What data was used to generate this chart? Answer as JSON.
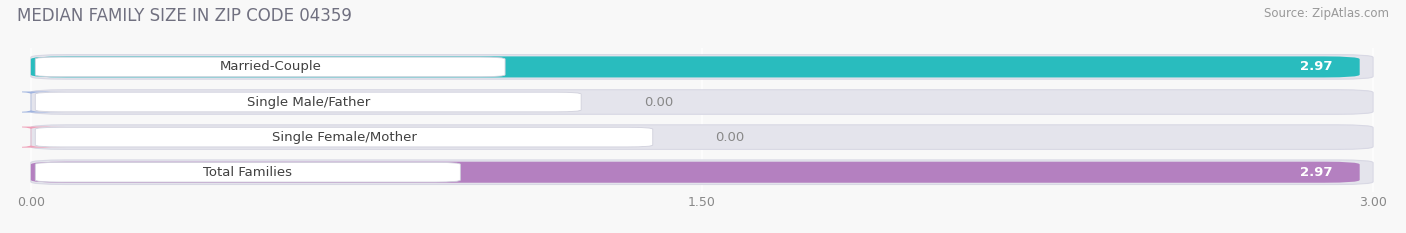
{
  "title": "MEDIAN FAMILY SIZE IN ZIP CODE 04359",
  "source": "Source: ZipAtlas.com",
  "categories": [
    "Married-Couple",
    "Single Male/Father",
    "Single Female/Mother",
    "Total Families"
  ],
  "values": [
    2.97,
    0.0,
    0.0,
    2.97
  ],
  "bar_colors": [
    "#29bcbe",
    "#a0b4e0",
    "#f0a0b8",
    "#b480c0"
  ],
  "bar_bg_color": "#e4e4ec",
  "bar_bg_outline": "#d8d8e4",
  "xlim_max": 3.0,
  "xticks": [
    0.0,
    1.5,
    3.0
  ],
  "xtick_labels": [
    "0.00",
    "1.50",
    "3.00"
  ],
  "title_fontsize": 12,
  "source_fontsize": 8.5,
  "bar_label_fontsize": 9.5,
  "category_fontsize": 9.5,
  "tick_fontsize": 9,
  "figsize": [
    14.06,
    2.33
  ],
  "dpi": 100,
  "bg_color": "#f8f8f8",
  "label_pill_color": "#ffffff",
  "label_pill_edge": "#d0d0dc",
  "gridline_color": "#e0e0e8",
  "value_color_on_bar": "#ffffff",
  "value_color_off_bar": "#888888"
}
